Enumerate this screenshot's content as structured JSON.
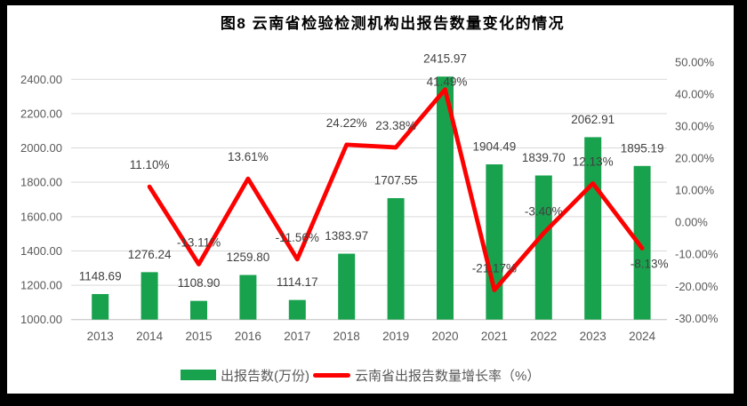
{
  "chart": {
    "title": "图8 云南省检验检测机构出报告数量变化的情况",
    "legend": {
      "bars": "出报告数(万份)",
      "line": "云南省出报告数量增长率（%）"
    }
  },
  "chart_data": {
    "type": "bar+line",
    "title": "图8 云南省检验检测机构出报告数量变化的情况",
    "categories": [
      "2013",
      "2014",
      "2015",
      "2016",
      "2017",
      "2018",
      "2019",
      "2020",
      "2021",
      "2022",
      "2023",
      "2024"
    ],
    "series": [
      {
        "name": "出报告数(万份)",
        "type": "bar",
        "axis": "left",
        "values": [
          1148.69,
          1276.24,
          1108.9,
          1259.8,
          1114.17,
          1383.97,
          1707.55,
          2415.97,
          1904.49,
          1839.7,
          2062.91,
          1895.19
        ],
        "labels": [
          "1148.69",
          "1276.24",
          "1108.90",
          "1259.80",
          "1114.17",
          "1383.97",
          "1707.55",
          "2415.97",
          "1904.49",
          "1839.70",
          "2062.91",
          "1895.19"
        ]
      },
      {
        "name": "云南省出报告数量增长率（%）",
        "type": "line",
        "axis": "right",
        "values": [
          null,
          11.1,
          -13.11,
          13.61,
          -11.56,
          24.22,
          23.38,
          41.49,
          -21.17,
          -3.4,
          12.13,
          -8.13
        ],
        "labels": [
          null,
          "11.10%",
          "-13.11%",
          "13.61%",
          "-11.56%",
          "24.22%",
          "23.38%",
          "41.49%",
          "-21.17%",
          "-3.40%",
          "12.13%",
          "-8.13%"
        ]
      }
    ],
    "left_axis": {
      "min": 1000,
      "max": 2400,
      "step": 200,
      "tick_labels": [
        "1000.00",
        "1200.00",
        "1400.00",
        "1600.00",
        "1800.00",
        "2000.00",
        "2200.00",
        "2400.00"
      ]
    },
    "right_axis": {
      "min": -30,
      "max": 50,
      "step": 10,
      "tick_labels": [
        "-30.00%",
        "-20.00%",
        "-10.00%",
        "0.00%",
        "10.00%",
        "20.00%",
        "30.00%",
        "40.00%",
        "50.00%"
      ]
    },
    "grid": true,
    "legend_position": "bottom"
  },
  "colors": {
    "bar": "#18A24D",
    "line": "#FE0000",
    "axis_text": "#595959",
    "data_label": "#404040",
    "gridline": "#D9D9D9",
    "axis_line": "#BFBFBF",
    "chart_background": "#FFFFFF",
    "frame": "#000000"
  }
}
